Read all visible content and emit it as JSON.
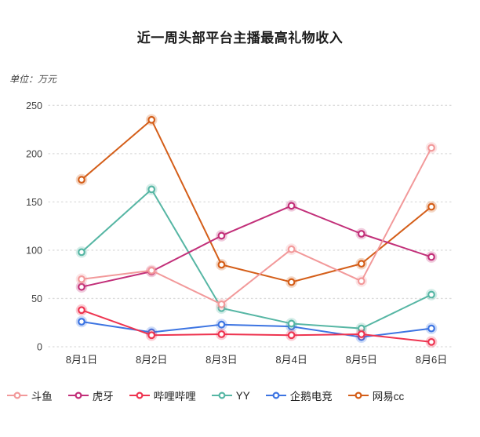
{
  "page": {
    "title": "近一周头部平台主播最高礼物收入",
    "unit_label": "单位：万元"
  },
  "chart_data": {
    "type": "line",
    "title": "近一周头部平台主播最高礼物收入",
    "ylabel": "单位：万元",
    "xlabel": "",
    "categories": [
      "8月1日",
      "8月2日",
      "8月3日",
      "8月4日",
      "8月5日",
      "8月6日"
    ],
    "series": [
      {
        "name": "斗鱼",
        "color": "#F2999A",
        "values": [
          70,
          79,
          44,
          101,
          68,
          206
        ]
      },
      {
        "name": "虎牙",
        "color": "#C22F79",
        "values": [
          62,
          78,
          115,
          146,
          117,
          93
        ]
      },
      {
        "name": "哔哩哔哩",
        "color": "#EE3450",
        "values": [
          38,
          12,
          13,
          12,
          13,
          5
        ]
      },
      {
        "name": "YY",
        "color": "#56B6A4",
        "values": [
          98,
          163,
          40,
          24,
          19,
          54
        ]
      },
      {
        "name": "企鹅电竞",
        "color": "#3C74E2",
        "values": [
          26,
          15,
          23,
          21,
          10,
          19
        ]
      },
      {
        "name": "网易cc",
        "color": "#D45E19",
        "values": [
          173,
          235,
          85,
          67,
          86,
          145
        ]
      }
    ],
    "ylim": [
      0,
      250
    ],
    "yticks": [
      0,
      50,
      100,
      150,
      200,
      250
    ],
    "grid": "horizontal-dotted",
    "grid_color": "#DBDBDB",
    "legend_position": "bottom",
    "marker": "hollow-circle"
  }
}
